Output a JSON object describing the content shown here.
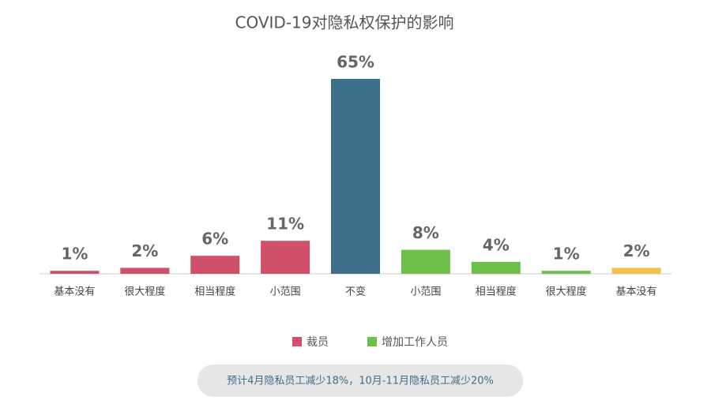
{
  "chart_data": {
    "type": "bar",
    "title": "COVID-19对隐私权保护的影响",
    "categories": [
      "基本没有",
      "很大程度",
      "相当程度",
      "小范围",
      "不变",
      "小范围",
      "相当程度",
      "很大程度",
      "基本没有"
    ],
    "values": [
      1,
      2,
      6,
      11,
      65,
      8,
      4,
      1,
      2
    ],
    "value_labels": [
      "1%",
      "2%",
      "6%",
      "11%",
      "65%",
      "8%",
      "4%",
      "1%",
      "2%"
    ],
    "colors": [
      "#d04f69",
      "#d04f69",
      "#d04f69",
      "#d04f69",
      "#3d6e8a",
      "#6cc04a",
      "#6cc04a",
      "#6cc04a",
      "#f2c04f"
    ],
    "legend": [
      {
        "name": "裁员",
        "color": "#d04f69"
      },
      {
        "name": "增加工作人员",
        "color": "#6cc04a"
      }
    ],
    "note": "预计4月隐私员工减少18%，10月-11月隐私员工减少20%"
  }
}
